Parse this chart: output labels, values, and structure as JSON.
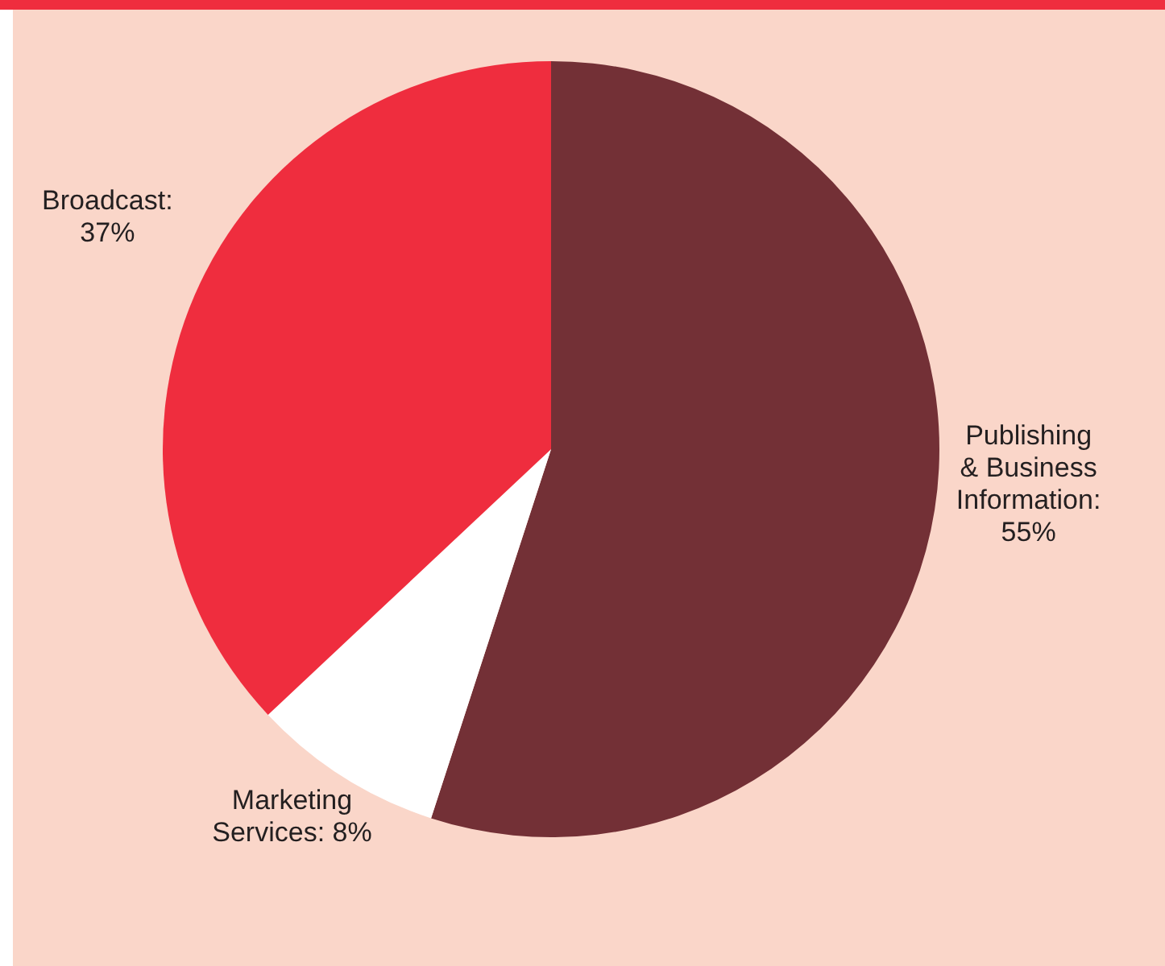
{
  "chart_data": {
    "type": "pie",
    "categories": [
      "Publishing\n& Business\nInformation",
      "Marketing\nServices",
      "Broadcast"
    ],
    "values": [
      55,
      8,
      37
    ],
    "value_labels": [
      ":\n55%",
      ": 8%",
      ":\n37%"
    ],
    "colors": [
      "#733036",
      "#ffffff",
      "#ef2d3e"
    ]
  }
}
